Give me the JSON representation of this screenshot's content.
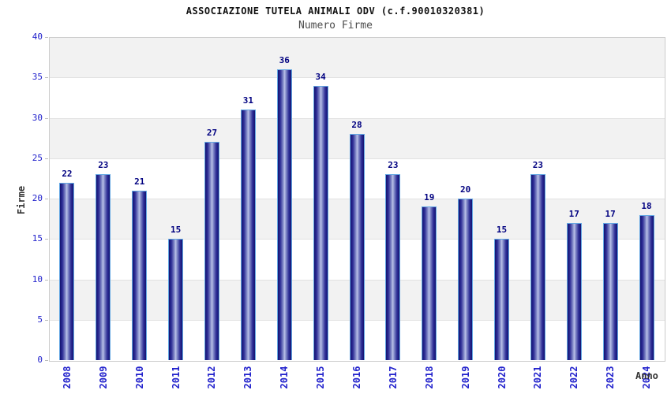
{
  "chart_data": {
    "type": "bar",
    "title": "ASSOCIAZIONE TUTELA ANIMALI ODV (c.f.90010320381)",
    "subtitle": "Numero Firme",
    "xlabel": "Anno",
    "ylabel": "Firme",
    "categories": [
      "2008",
      "2009",
      "2010",
      "2011",
      "2012",
      "2013",
      "2014",
      "2015",
      "2016",
      "2017",
      "2018",
      "2019",
      "2020",
      "2021",
      "2022",
      "2023",
      "2024"
    ],
    "values": [
      22,
      23,
      21,
      15,
      27,
      31,
      36,
      34,
      28,
      23,
      19,
      20,
      15,
      23,
      17,
      17,
      18
    ],
    "ylim": [
      0,
      40
    ],
    "yticks": [
      0,
      5,
      10,
      15,
      20,
      25,
      30,
      35,
      40
    ],
    "grid": true,
    "legend": "none",
    "colors": {
      "title": "#111111",
      "subtitle": "#4d4d4d",
      "axis_label": "#333333",
      "tick_label": "#2222cc",
      "value_label": "#000080",
      "bar_edge": "#14146e",
      "bar_center": "#bcc2e8",
      "bar_outline": "#63a7e3",
      "band_gray": "#f2f2f2",
      "band_white": "#ffffff",
      "plot_border": "#cccccc"
    }
  }
}
